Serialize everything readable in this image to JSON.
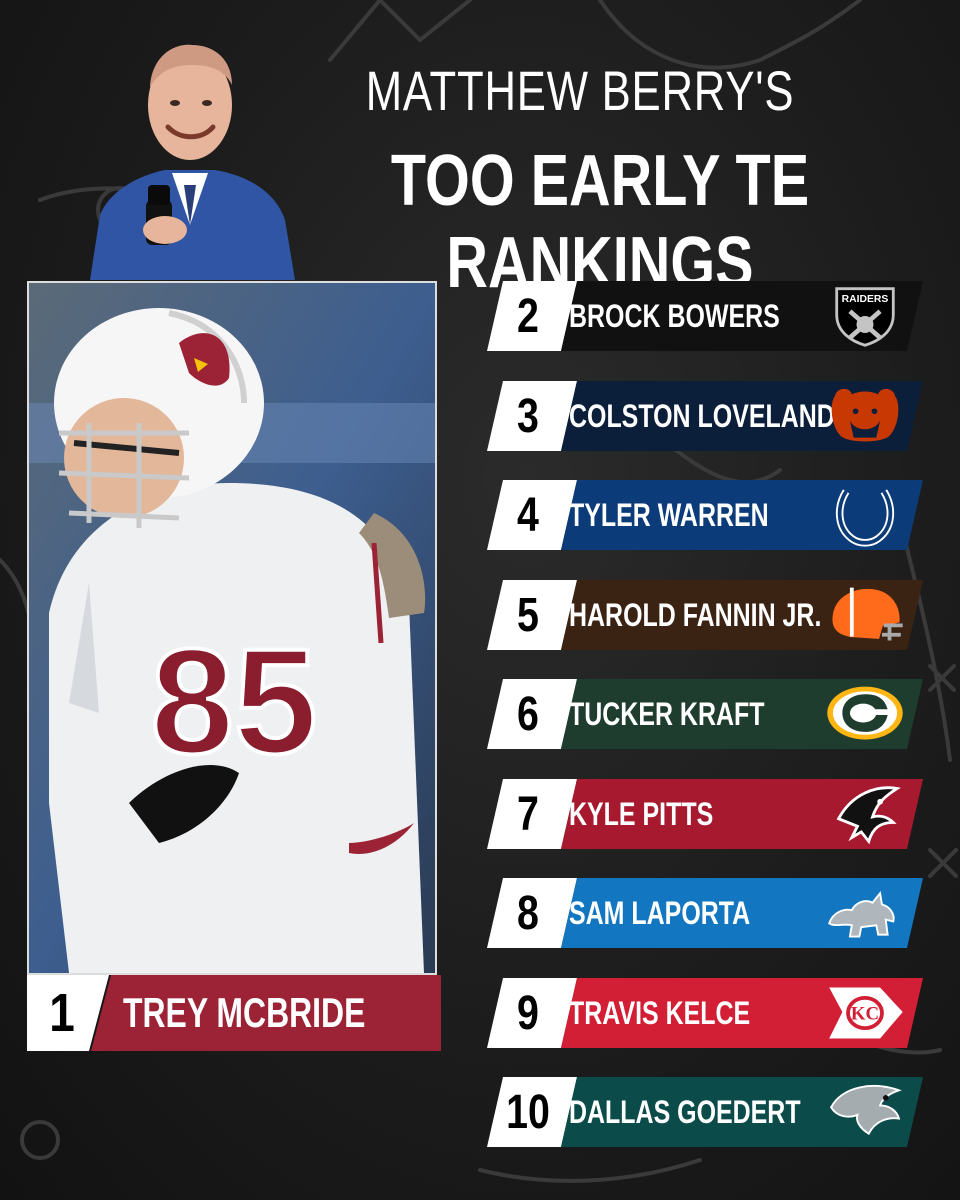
{
  "header": {
    "title_line1": "MATTHEW BERRY'S",
    "title_line2": "TOO EARLY TE RANKINGS"
  },
  "featured": {
    "rank": "1",
    "name": "TREY MCBRIDE",
    "jersey_number": "85",
    "bar_color": "#9b2335"
  },
  "rankings": [
    {
      "rank": "2",
      "name": "BROCK BOWERS",
      "color": "#111111",
      "logo": "raiders-shield-icon",
      "logo_text": "RAIDERS"
    },
    {
      "rank": "3",
      "name": "COLSTON LOVELAND",
      "color": "#0b1f3a",
      "logo": "bears-head-icon",
      "logo_text": ""
    },
    {
      "rank": "4",
      "name": "TYLER WARREN",
      "color": "#0b3b78",
      "logo": "colts-horseshoe-icon",
      "logo_text": ""
    },
    {
      "rank": "5",
      "name": "HAROLD FANNIN JR.",
      "color": "#3b2314",
      "logo": "browns-helmet-icon",
      "logo_text": ""
    },
    {
      "rank": "6",
      "name": "TUCKER KRAFT",
      "color": "#1f3d2e",
      "logo": "packers-g-icon",
      "logo_text": ""
    },
    {
      "rank": "7",
      "name": "KYLE PITTS",
      "color": "#a6192e",
      "logo": "falcons-bird-icon",
      "logo_text": ""
    },
    {
      "rank": "8",
      "name": "SAM LAPORTA",
      "color": "#1376c0",
      "logo": "lions-lion-icon",
      "logo_text": ""
    },
    {
      "rank": "9",
      "name": "TRAVIS KELCE",
      "color": "#d31f35",
      "logo": "chiefs-arrowhead-icon",
      "logo_text": "KC"
    },
    {
      "rank": "10",
      "name": "DALLAS GOEDERT",
      "color": "#0b4c4a",
      "logo": "eagles-head-icon",
      "logo_text": ""
    }
  ]
}
